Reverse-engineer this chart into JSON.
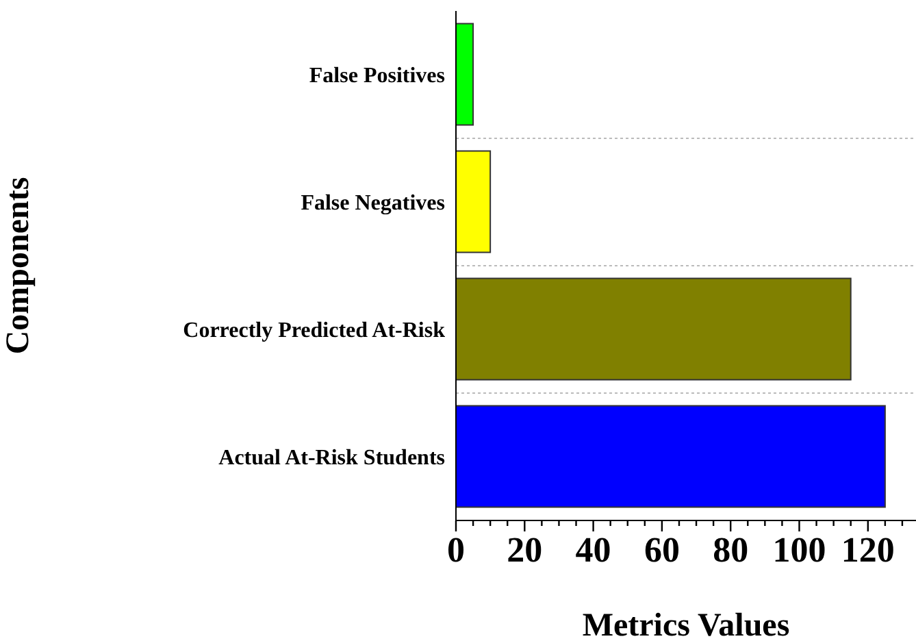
{
  "chart_data": {
    "type": "bar",
    "orientation": "horizontal",
    "xlabel": "Metrics Values",
    "ylabel": "Components",
    "categories": [
      "False Positives",
      "False Negatives",
      "Correctly Predicted At-Risk",
      "Actual At-Risk Students"
    ],
    "values": [
      5,
      10,
      115,
      125
    ],
    "colors": [
      "#00ff00",
      "#ffff00",
      "#808000",
      "#0000ff"
    ],
    "xlim": [
      0,
      134
    ],
    "xticks": [
      0,
      {
        "value": 5,
        "label": null
      },
      {
        "value": 10,
        "label": null
      },
      {
        "value": 15,
        "label": null
      },
      20,
      {
        "value": 25,
        "label": null
      },
      {
        "value": 30,
        "label": null
      },
      {
        "value": 35,
        "label": null
      },
      40,
      {
        "value": 45,
        "label": null
      },
      {
        "value": 50,
        "label": null
      },
      {
        "value": 55,
        "label": null
      },
      60,
      {
        "value": 65,
        "label": null
      },
      {
        "value": 70,
        "label": null
      },
      {
        "value": 75,
        "label": null
      },
      80,
      {
        "value": 85,
        "label": null
      },
      {
        "value": 90,
        "label": null
      },
      {
        "value": 95,
        "label": null
      },
      100,
      {
        "value": 105,
        "label": null
      },
      {
        "value": 110,
        "label": null
      },
      {
        "value": 115,
        "label": null
      },
      120,
      {
        "value": 125,
        "label": null
      },
      {
        "value": 130,
        "label": null
      }
    ],
    "grid": "y",
    "legend": false
  }
}
